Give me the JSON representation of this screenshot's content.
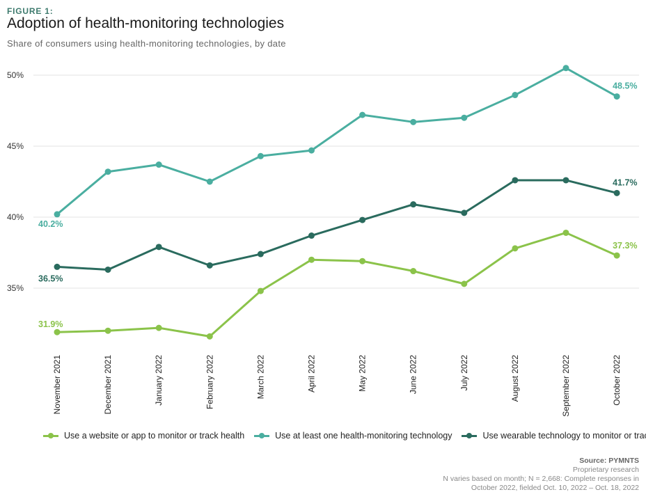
{
  "figure_label": "FIGURE 1:",
  "chart_data": {
    "type": "line",
    "title": "Adoption of health-monitoring technologies",
    "subtitle": "Share of consumers using health-monitoring technologies, by date",
    "categories": [
      "November 2021",
      "December 2021",
      "January 2022",
      "February 2022",
      "March 2022",
      "April 2022",
      "May 2022",
      "June 2022",
      "July 2022",
      "August 2022",
      "September 2022",
      "October 2022"
    ],
    "yticks": [
      "35%",
      "40%",
      "45%",
      "50%"
    ],
    "ytick_values": [
      35,
      40,
      45,
      50
    ],
    "ylim": [
      30,
      51
    ],
    "grid": true,
    "legend_position": "bottom",
    "series": [
      {
        "name": "Use a website or app to monitor or track health",
        "color": "#8bc34a",
        "values": [
          31.9,
          32.0,
          32.2,
          31.6,
          34.8,
          37.0,
          36.9,
          36.2,
          35.3,
          37.8,
          38.9,
          37.3
        ],
        "start_label": "31.9%",
        "end_label": "37.3%"
      },
      {
        "name": "Use at least one health-monitoring technology",
        "color": "#4aaea0",
        "values": [
          40.2,
          43.2,
          43.7,
          42.5,
          44.3,
          44.7,
          47.2,
          46.7,
          47.0,
          48.6,
          50.5,
          48.5
        ],
        "start_label": "40.2%",
        "end_label": "48.5%"
      },
      {
        "name": "Use wearable technology to monitor or track health",
        "color": "#2a6b5e",
        "values": [
          36.5,
          36.3,
          37.9,
          36.6,
          37.4,
          38.7,
          39.8,
          40.9,
          40.3,
          42.6,
          42.6,
          41.7
        ],
        "start_label": "36.5%",
        "end_label": "41.7%"
      }
    ]
  },
  "footer": {
    "source": "Source: PYMNTS",
    "lines": [
      "Proprietary research",
      "N varies based on month; N = 2,668: Complete responses in",
      "October 2022, fielded Oct. 10, 2022 – Oct. 18, 2022"
    ]
  }
}
